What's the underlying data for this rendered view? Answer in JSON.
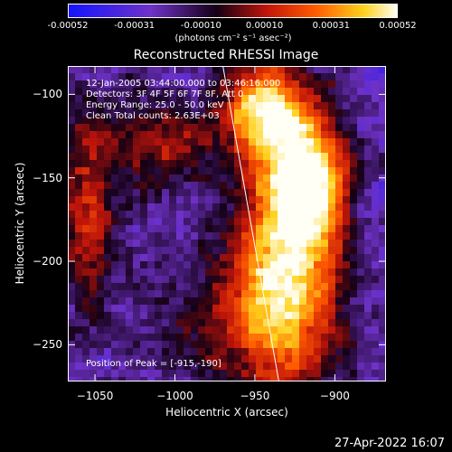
{
  "colorbar": {
    "ticks": [
      "-0.00052",
      "-0.00031",
      "-0.00010",
      "0.00010",
      "0.00031",
      "0.00052"
    ],
    "units": "(photons cm⁻² s⁻¹ asec⁻²)"
  },
  "info": {
    "time_range": "12-Jan-2005 03:44:00.000 to 03:46:16.000",
    "detectors": "Detectors: 3F 4F 5F 6F 7F 8F, Att 0",
    "energy": "Energy Range: 25.0 - 50.0 keV",
    "method": "Clean     Total counts: 2.63E+03",
    "peak": "Position of Peak = [-915,-190]"
  },
  "timestamp": "27-Apr-2022 16:07",
  "chart_data": {
    "type": "heatmap",
    "title": "Reconstructed RHESSI Image",
    "xlabel": "Heliocentric X (arcsec)",
    "ylabel": "Heliocentric Y (arcsec)",
    "xlim": [
      -1067,
      -868
    ],
    "ylim": [
      -272,
      -83
    ],
    "x_ticks": [
      -1050,
      -1000,
      -950,
      -900
    ],
    "y_ticks": [
      -100,
      -150,
      -200,
      -250
    ],
    "colorbar_range": [
      -0.00052,
      0.00052
    ],
    "peak_position": [
      -915,
      -190
    ],
    "limb_line": [
      [
        -970,
        -83
      ],
      [
        -935,
        -272
      ]
    ],
    "sources": [
      {
        "x": -930,
        "y": -200,
        "sigma_x": 22,
        "sigma_y": 55,
        "intensity": 1.0
      },
      {
        "x": -945,
        "y": -110,
        "sigma_x": 18,
        "sigma_y": 18,
        "intensity": 0.85
      },
      {
        "x": -915,
        "y": -150,
        "sigma_x": 15,
        "sigma_y": 25,
        "intensity": 0.8
      },
      {
        "x": -1055,
        "y": -170,
        "sigma_x": 12,
        "sigma_y": 40,
        "intensity": 0.5
      },
      {
        "x": -1010,
        "y": -130,
        "sigma_x": 25,
        "sigma_y": 20,
        "intensity": 0.35
      },
      {
        "x": -975,
        "y": -235,
        "sigma_x": 30,
        "sigma_y": 25,
        "intensity": 0.3
      }
    ]
  }
}
